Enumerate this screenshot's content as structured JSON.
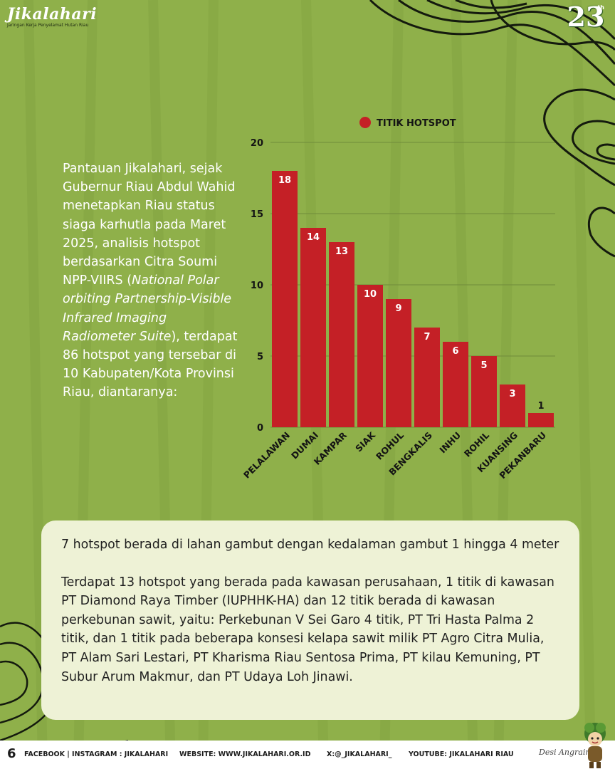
{
  "brand": {
    "name": "Jikalahari",
    "tagline": "Jaringan Kerja Penyelamat Hutan Riau",
    "anniversary_number": "23",
    "anniversary_suffix": "th"
  },
  "intro": {
    "part1": "Pantauan Jikalahari, sejak Gubernur Riau Abdul Wahid menetapkan Riau status siaga karhutla pada Maret 2025, analisis hotspot berdasarkan Citra Soumi NPP-VIIRS (",
    "italic": "National Polar orbiting Partnership-Visible Infrared Imaging Radiometer Suite",
    "part2": "), terdapat 86 hotspot yang tersebar di 10 Kabupaten/Kota Provinsi Riau, diantaranya:"
  },
  "chart_data": {
    "type": "bar",
    "categories": [
      "PELALAWAN",
      "DUMAI",
      "KAMPAR",
      "SIAK",
      "ROHUL",
      "BENGKALIS",
      "INHU",
      "ROHIL",
      "KUANSING",
      "PEKANBARU"
    ],
    "series": [
      {
        "name": "TITIK HOTSPOT",
        "values": [
          18,
          14,
          13,
          10,
          9,
          7,
          6,
          5,
          3,
          1
        ]
      }
    ],
    "yticks": [
      0,
      5,
      10,
      15,
      20
    ],
    "ylim": [
      0,
      20
    ],
    "legend_position": "top",
    "grid": true,
    "bar_color": "#c42026",
    "data_labels": true
  },
  "info": {
    "paragraph1": "7 hotspot berada di lahan gambut dengan kedalaman gambut 1 hingga 4 meter",
    "paragraph2": "Terdapat 13 hotspot yang berada pada kawasan perusahaan, 1 titik di kawasan PT Diamond Raya Timber (IUPHHK-HA) dan 12 titik berada di kawasan perkebunan sawit, yaitu: Perkebunan V Sei Garo 4 titik, PT Tri Hasta Palma 2 titik, dan 1 titik pada beberapa konsesi kelapa sawit milik PT Agro Citra Mulia, PT Alam Sari Lestari, PT Kharisma Riau Sentosa Prima, PT kilau Kemuning, PT Subur Arum Makmur, dan PT Udaya Loh Jinawi."
  },
  "footer": {
    "page_number": "6",
    "social": "FACEBOOK | INSTAGRAM : JIKALAHARI",
    "website": "WEBSITE: WWW.JIKALAHARI.OR.ID",
    "x": "X:@_JIKALAHARI_",
    "youtube": "YOUTUBE: JIKALAHARI RIAU",
    "signature": "Desi Angraini"
  },
  "colors": {
    "background": "#8fb04a",
    "bar": "#c42026",
    "info_box": "#eef2d6",
    "contour_lines": "#141a0e"
  }
}
